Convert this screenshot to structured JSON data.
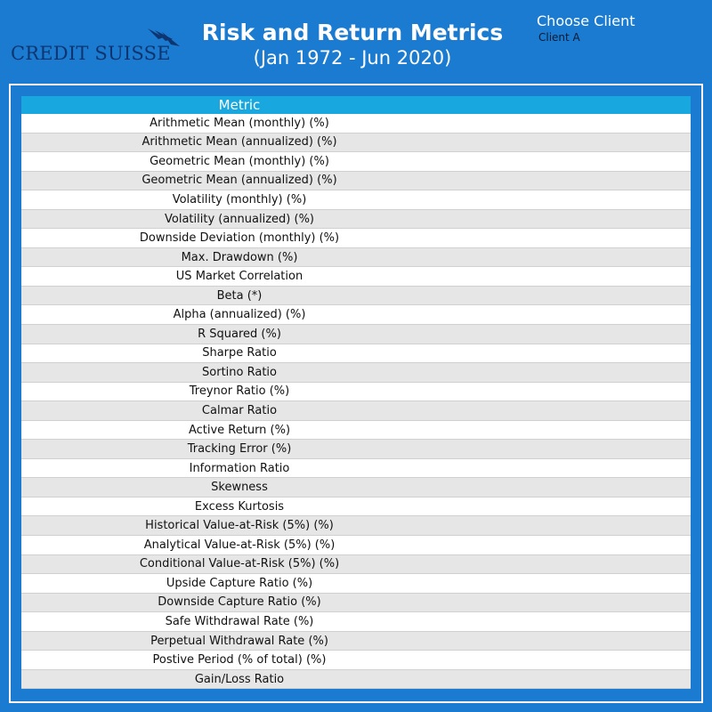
{
  "header": {
    "logo_text": "CREDIT SUISSE",
    "title": "Risk and Return Metrics",
    "subtitle": "(Jan 1972 - Jun 2020)",
    "client_label": "Choose Client",
    "client_value": "Client A"
  },
  "table": {
    "column_header": "Metric",
    "rows": [
      "Arithmetic Mean (monthly) (%)",
      "Arithmetic Mean (annualized) (%)",
      "Geometric Mean (monthly) (%)",
      "Geometric Mean (annualized) (%)",
      "Volatility (monthly) (%)",
      "Volatility (annualized) (%)",
      "Downside Deviation (monthly) (%)",
      "Max. Drawdown (%)",
      "US Market Correlation",
      "Beta (*)",
      "Alpha (annualized) (%)",
      "R Squared (%)",
      "Sharpe Ratio",
      "Sortino Ratio",
      "Treynor Ratio (%)",
      "Calmar Ratio",
      "Active Return (%)",
      "Tracking Error (%)",
      "Information Ratio",
      "Skewness",
      "Excess Kurtosis",
      "Historical Value-at-Risk (5%) (%)",
      "Analytical Value-at-Risk (5%) (%)",
      "Conditional Value-at-Risk (5%) (%)",
      "Upside Capture Ratio (%)",
      "Downside Capture Ratio (%)",
      "Safe Withdrawal Rate (%)",
      "Perpetual Withdrawal Rate (%)",
      "Postive Period (% of total) (%)",
      "Gain/Loss Ratio"
    ]
  },
  "colors": {
    "frame_blue": "#1a7bd0",
    "header_cell": "#19a7e0",
    "logo_navy": "#0f3570",
    "row_alt": "#e6e6e6"
  }
}
